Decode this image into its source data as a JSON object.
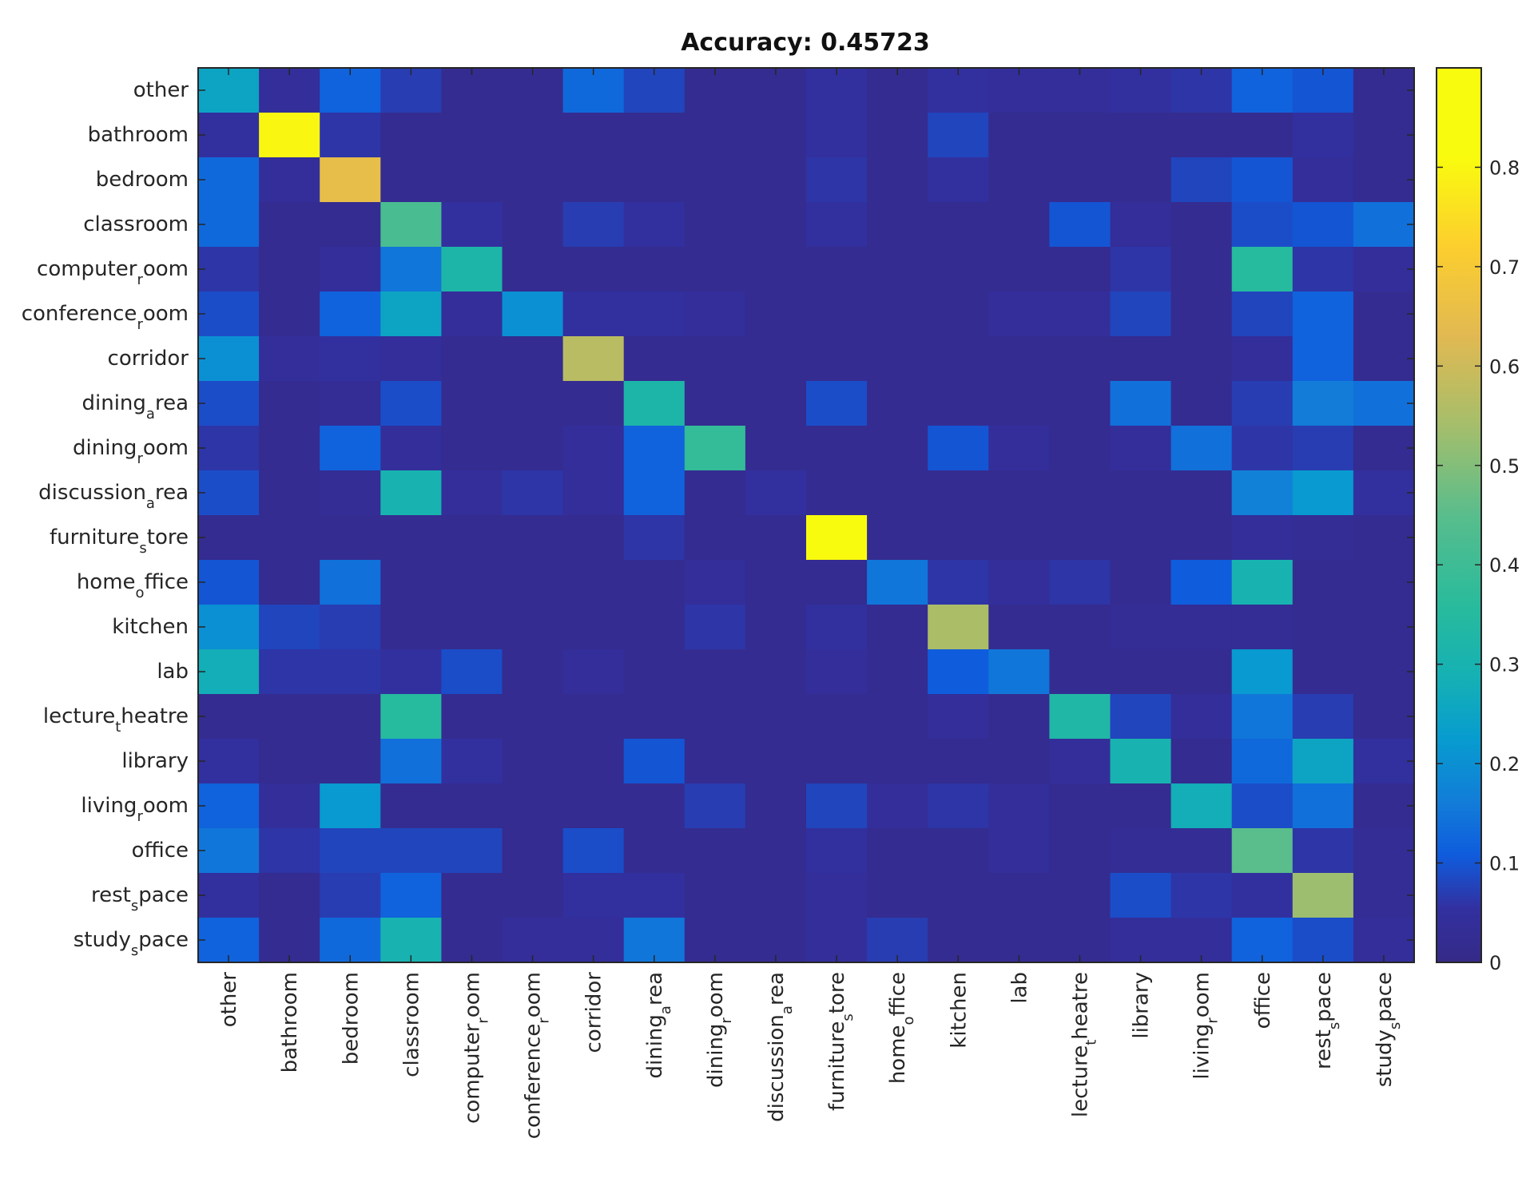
{
  "chart_data": {
    "type": "heatmap",
    "title": "Accuracy: 0.45723",
    "xlabel": "",
    "ylabel": "",
    "categories": [
      {
        "base": "other",
        "sub": "",
        "rest": ""
      },
      {
        "base": "bathroom",
        "sub": "",
        "rest": ""
      },
      {
        "base": "bedroom",
        "sub": "",
        "rest": ""
      },
      {
        "base": "classroom",
        "sub": "",
        "rest": ""
      },
      {
        "base": "computer",
        "sub": "r",
        "rest": "oom"
      },
      {
        "base": "conference",
        "sub": "r",
        "rest": "oom"
      },
      {
        "base": "corridor",
        "sub": "",
        "rest": ""
      },
      {
        "base": "dining",
        "sub": "a",
        "rest": "rea"
      },
      {
        "base": "dining",
        "sub": "r",
        "rest": "oom"
      },
      {
        "base": "discussion",
        "sub": "a",
        "rest": "rea"
      },
      {
        "base": "furniture",
        "sub": "s",
        "rest": "tore"
      },
      {
        "base": "home",
        "sub": "o",
        "rest": "ffice"
      },
      {
        "base": "kitchen",
        "sub": "",
        "rest": ""
      },
      {
        "base": "lab",
        "sub": "",
        "rest": ""
      },
      {
        "base": "lecture",
        "sub": "t",
        "rest": "heatre"
      },
      {
        "base": "library",
        "sub": "",
        "rest": ""
      },
      {
        "base": "living",
        "sub": "r",
        "rest": "oom"
      },
      {
        "base": "office",
        "sub": "",
        "rest": ""
      },
      {
        "base": "rest",
        "sub": "s",
        "rest": "pace"
      },
      {
        "base": "study",
        "sub": "s",
        "rest": "pace"
      }
    ],
    "matrix": [
      [
        0.25,
        0.04,
        0.12,
        0.07,
        0.02,
        0.02,
        0.13,
        0.08,
        0.02,
        0.02,
        0.05,
        0.02,
        0.05,
        0.04,
        0.04,
        0.05,
        0.06,
        0.12,
        0.1,
        0.02
      ],
      [
        0.05,
        0.8,
        0.06,
        0.02,
        0.02,
        0.02,
        0.02,
        0.02,
        0.02,
        0.02,
        0.05,
        0.02,
        0.08,
        0.02,
        0.02,
        0.02,
        0.02,
        0.02,
        0.05,
        0.02
      ],
      [
        0.13,
        0.04,
        0.65,
        0.02,
        0.02,
        0.02,
        0.02,
        0.02,
        0.02,
        0.02,
        0.06,
        0.02,
        0.05,
        0.02,
        0.02,
        0.02,
        0.08,
        0.1,
        0.04,
        0.02
      ],
      [
        0.13,
        0.02,
        0.02,
        0.42,
        0.05,
        0.02,
        0.07,
        0.05,
        0.02,
        0.02,
        0.05,
        0.02,
        0.02,
        0.02,
        0.1,
        0.04,
        0.02,
        0.09,
        0.1,
        0.14
      ],
      [
        0.06,
        0.02,
        0.04,
        0.15,
        0.32,
        0.02,
        0.02,
        0.02,
        0.02,
        0.02,
        0.02,
        0.02,
        0.02,
        0.02,
        0.02,
        0.06,
        0.02,
        0.35,
        0.06,
        0.04
      ],
      [
        0.09,
        0.02,
        0.12,
        0.25,
        0.04,
        0.2,
        0.05,
        0.05,
        0.04,
        0.02,
        0.02,
        0.02,
        0.02,
        0.04,
        0.04,
        0.08,
        0.02,
        0.08,
        0.12,
        0.02
      ],
      [
        0.2,
        0.04,
        0.05,
        0.04,
        0.02,
        0.02,
        0.57,
        0.02,
        0.02,
        0.02,
        0.02,
        0.02,
        0.02,
        0.02,
        0.02,
        0.02,
        0.02,
        0.04,
        0.12,
        0.02
      ],
      [
        0.09,
        0.02,
        0.03,
        0.09,
        0.02,
        0.02,
        0.02,
        0.32,
        0.02,
        0.02,
        0.09,
        0.02,
        0.02,
        0.02,
        0.02,
        0.14,
        0.02,
        0.07,
        0.16,
        0.14
      ],
      [
        0.06,
        0.02,
        0.12,
        0.04,
        0.02,
        0.02,
        0.04,
        0.12,
        0.38,
        0.02,
        0.02,
        0.02,
        0.1,
        0.04,
        0.02,
        0.04,
        0.14,
        0.06,
        0.07,
        0.02
      ],
      [
        0.09,
        0.02,
        0.03,
        0.3,
        0.04,
        0.06,
        0.04,
        0.12,
        0.02,
        0.05,
        0.02,
        0.02,
        0.02,
        0.02,
        0.02,
        0.02,
        0.02,
        0.17,
        0.22,
        0.05
      ],
      [
        0.02,
        0.02,
        0.02,
        0.02,
        0.02,
        0.02,
        0.02,
        0.06,
        0.02,
        0.02,
        0.9,
        0.02,
        0.02,
        0.02,
        0.02,
        0.02,
        0.02,
        0.04,
        0.03,
        0.02
      ],
      [
        0.1,
        0.02,
        0.14,
        0.02,
        0.02,
        0.02,
        0.02,
        0.02,
        0.04,
        0.02,
        0.02,
        0.15,
        0.06,
        0.04,
        0.06,
        0.02,
        0.11,
        0.3,
        0.02,
        0.02
      ],
      [
        0.2,
        0.08,
        0.07,
        0.02,
        0.02,
        0.02,
        0.02,
        0.02,
        0.06,
        0.02,
        0.05,
        0.02,
        0.55,
        0.02,
        0.02,
        0.03,
        0.03,
        0.03,
        0.02,
        0.02
      ],
      [
        0.28,
        0.06,
        0.06,
        0.05,
        0.09,
        0.02,
        0.04,
        0.02,
        0.02,
        0.02,
        0.04,
        0.02,
        0.11,
        0.15,
        0.02,
        0.02,
        0.02,
        0.22,
        0.02,
        0.02
      ],
      [
        0.02,
        0.02,
        0.02,
        0.35,
        0.02,
        0.02,
        0.02,
        0.02,
        0.02,
        0.02,
        0.02,
        0.02,
        0.04,
        0.02,
        0.33,
        0.08,
        0.04,
        0.15,
        0.07,
        0.02
      ],
      [
        0.05,
        0.02,
        0.02,
        0.14,
        0.05,
        0.02,
        0.02,
        0.1,
        0.02,
        0.02,
        0.02,
        0.02,
        0.02,
        0.02,
        0.04,
        0.3,
        0.02,
        0.13,
        0.25,
        0.05
      ],
      [
        0.12,
        0.04,
        0.22,
        0.02,
        0.02,
        0.02,
        0.02,
        0.02,
        0.07,
        0.02,
        0.08,
        0.04,
        0.06,
        0.04,
        0.02,
        0.02,
        0.28,
        0.09,
        0.14,
        0.02
      ],
      [
        0.15,
        0.06,
        0.08,
        0.08,
        0.08,
        0.02,
        0.09,
        0.02,
        0.02,
        0.02,
        0.05,
        0.02,
        0.02,
        0.04,
        0.02,
        0.03,
        0.03,
        0.45,
        0.06,
        0.03
      ],
      [
        0.05,
        0.02,
        0.07,
        0.12,
        0.02,
        0.02,
        0.05,
        0.05,
        0.02,
        0.02,
        0.04,
        0.02,
        0.02,
        0.02,
        0.02,
        0.09,
        0.06,
        0.05,
        0.53,
        0.03
      ],
      [
        0.12,
        0.02,
        0.13,
        0.3,
        0.02,
        0.04,
        0.04,
        0.15,
        0.02,
        0.02,
        0.04,
        0.07,
        0.02,
        0.02,
        0.02,
        0.04,
        0.04,
        0.12,
        0.09,
        0.04
      ]
    ],
    "colorbar": {
      "colormap": "parula",
      "range": [
        0,
        0.9
      ],
      "ticks": [
        "0",
        "0.1",
        "0.2",
        "0.3",
        "0.4",
        "0.5",
        "0.6",
        "0.7",
        "0.8"
      ]
    },
    "grid": false
  }
}
